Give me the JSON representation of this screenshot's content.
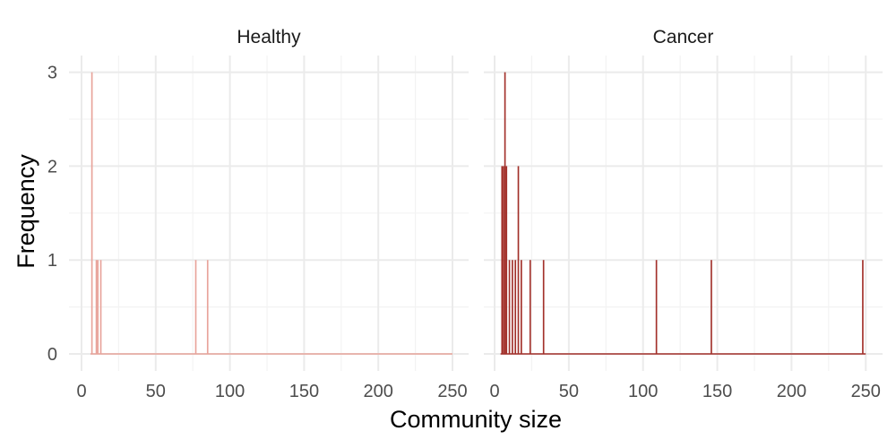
{
  "chart_data": {
    "type": "bar",
    "xlabel": "Community size",
    "ylabel": "Frequency",
    "xlim": [
      0,
      250
    ],
    "ylim": [
      0,
      3
    ],
    "x_ticks": [
      0,
      50,
      100,
      150,
      200,
      250
    ],
    "y_ticks": [
      0,
      1,
      2,
      3
    ],
    "grid": true,
    "bin_width": 1,
    "panels": [
      {
        "title": "Healthy",
        "color": "#e8a39a",
        "points": [
          {
            "x": 7,
            "y": 3
          },
          {
            "x": 10,
            "y": 1
          },
          {
            "x": 11,
            "y": 1
          },
          {
            "x": 13,
            "y": 1
          },
          {
            "x": 77,
            "y": 1
          },
          {
            "x": 85,
            "y": 1
          }
        ]
      },
      {
        "title": "Cancer",
        "color": "#a2302a",
        "points": [
          {
            "x": 5,
            "y": 2
          },
          {
            "x": 6,
            "y": 2
          },
          {
            "x": 7,
            "y": 3
          },
          {
            "x": 8,
            "y": 2
          },
          {
            "x": 10,
            "y": 1
          },
          {
            "x": 12,
            "y": 1
          },
          {
            "x": 14,
            "y": 1
          },
          {
            "x": 16,
            "y": 2
          },
          {
            "x": 18,
            "y": 1
          },
          {
            "x": 24,
            "y": 1
          },
          {
            "x": 33,
            "y": 1
          },
          {
            "x": 109,
            "y": 1
          },
          {
            "x": 146,
            "y": 1
          },
          {
            "x": 248,
            "y": 1
          }
        ]
      }
    ]
  }
}
